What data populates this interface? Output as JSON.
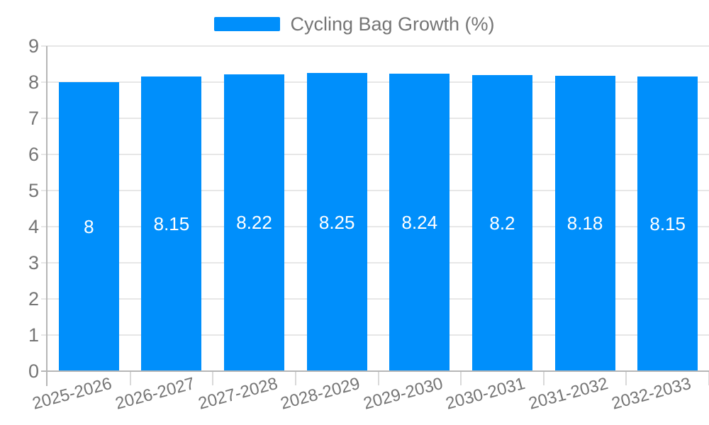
{
  "chart_data": {
    "type": "bar",
    "legend": "Cycling Bag Growth (%)",
    "legend_position": "top-center",
    "categories": [
      "2025-2026",
      "2026-2027",
      "2027-2028",
      "2028-2029",
      "2029-2030",
      "2030-2031",
      "2031-2032",
      "2032-2033"
    ],
    "values": [
      8,
      8.15,
      8.22,
      8.25,
      8.24,
      8.2,
      8.18,
      8.15
    ],
    "value_labels": [
      "8",
      "8.15",
      "8.22",
      "8.25",
      "8.24",
      "8.2",
      "8.18",
      "8.15"
    ],
    "title": "",
    "xlabel": "",
    "ylabel": "",
    "ylim": [
      0,
      9
    ],
    "yticks": [
      0,
      1,
      2,
      3,
      4,
      5,
      6,
      7,
      8,
      9
    ],
    "grid": true,
    "colors": {
      "bar": "#008FFB",
      "value_text": "#ffffff",
      "tick_text": "#757575",
      "legend_text": "#757575",
      "gridline": "#e7e7e7",
      "axis_line": "#b6b6b6",
      "background": "#ffffff"
    }
  }
}
